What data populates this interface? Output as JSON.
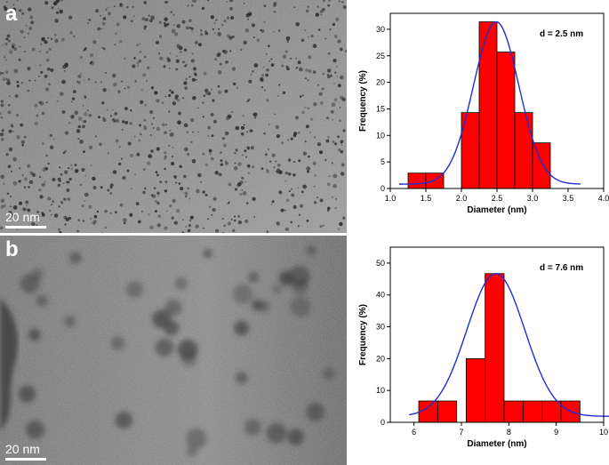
{
  "panels": {
    "a": {
      "letter": "a",
      "scale_bar": "20 nm"
    },
    "b": {
      "letter": "b",
      "scale_bar": "20 nm"
    }
  },
  "chart_data": [
    {
      "type": "bar",
      "panel": "a",
      "title": "",
      "annotation": "d = 2.5 nm",
      "xlabel": "Diameter (nm)",
      "ylabel": "Frequency (%)",
      "xlim": [
        1.0,
        4.0
      ],
      "ylim": [
        0,
        33
      ],
      "xticks": [
        "1.0",
        "1.5",
        "2.0",
        "2.5",
        "3.0",
        "3.5",
        "4.0"
      ],
      "yticks": [
        "0",
        "5",
        "10",
        "15",
        "20",
        "25",
        "30"
      ],
      "bar_width": 0.25,
      "x": [
        1.375,
        1.625,
        2.125,
        2.375,
        2.625,
        2.875,
        3.125
      ],
      "values": [
        2.9,
        2.9,
        14.3,
        31.4,
        25.7,
        14.3,
        8.6
      ],
      "fit": {
        "type": "gaussian",
        "color": "#1f2fd0"
      },
      "bar_color": "#ff0000"
    },
    {
      "type": "bar",
      "panel": "b",
      "title": "",
      "annotation": "d = 7.6 nm",
      "xlabel": "Diameter (nm)",
      "ylabel": "Frequency (%)",
      "xlim": [
        5.5,
        10.0
      ],
      "ylim": [
        0,
        55
      ],
      "xticks": [
        "6",
        "7",
        "8",
        "9",
        "10"
      ],
      "yticks": [
        "0",
        "10",
        "20",
        "30",
        "40",
        "50"
      ],
      "bar_width": 0.4,
      "x": [
        6.3,
        6.7,
        7.3,
        7.7,
        8.1,
        8.5,
        8.9,
        9.3
      ],
      "values": [
        6.7,
        6.7,
        20.0,
        46.7,
        6.7,
        6.7,
        6.7,
        6.7
      ],
      "fit": {
        "type": "gaussian",
        "color": "#1f2fd0"
      },
      "bar_color": "#ff0000"
    }
  ]
}
